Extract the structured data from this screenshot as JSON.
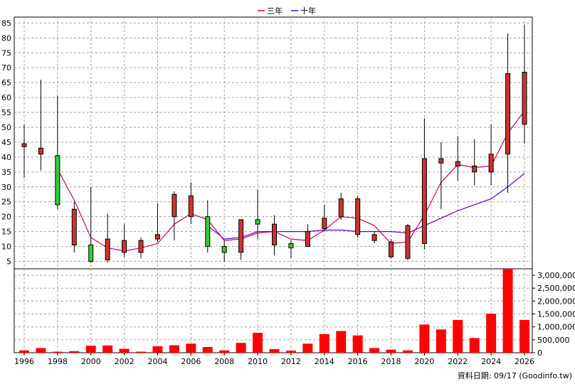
{
  "legend": [
    {
      "name": "三年",
      "color": "#cc0066"
    },
    {
      "name": "十年",
      "color": "#6600cc"
    }
  ],
  "footer": "資料日期: 09/17 (Goodinfo.tw)",
  "chart_data": [
    {
      "type": "candlestick",
      "years": [
        1996,
        1997,
        1998,
        1999,
        2000,
        2001,
        2002,
        2003,
        2004,
        2005,
        2006,
        2007,
        2008,
        2009,
        2010,
        2011,
        2012,
        2013,
        2014,
        2015,
        2016,
        2017,
        2018,
        2019,
        2020,
        2021,
        2022,
        2023,
        2024,
        2025,
        2026
      ],
      "open": [
        43.5,
        41.0,
        40.5,
        10.5,
        10.5,
        5.5,
        8.0,
        8.0,
        12.5,
        20.0,
        20.0,
        20.0,
        10.0,
        8.0,
        19.0,
        10.5,
        11.0,
        10.0,
        16.0,
        20.0,
        14.0,
        12.0,
        6.5,
        6.0,
        11.0,
        38.0,
        37.0,
        35.0,
        35.0,
        41.0,
        51.0
      ],
      "close": [
        44.5,
        43.0,
        24.0,
        22.5,
        5.0,
        12.5,
        12.0,
        12.0,
        14.0,
        27.5,
        27.0,
        10.0,
        8.0,
        19.0,
        17.5,
        17.5,
        9.5,
        15.0,
        19.5,
        26.0,
        26.0,
        14.0,
        11.5,
        17.0,
        39.5,
        39.5,
        38.5,
        37.0,
        41.0,
        68.0,
        68.5
      ],
      "high": [
        51.0,
        66.0,
        60.5,
        25.0,
        30.0,
        21.0,
        17.5,
        13.0,
        24.5,
        28.5,
        31.5,
        25.5,
        12.0,
        19.0,
        29.0,
        20.5,
        12.0,
        17.5,
        24.0,
        28.0,
        27.0,
        15.0,
        12.5,
        17.5,
        53.0,
        45.0,
        47.0,
        46.0,
        51.0,
        81.5,
        84.5
      ],
      "low": [
        33.0,
        35.5,
        22.5,
        8.0,
        4.5,
        4.5,
        6.5,
        6.0,
        11.5,
        12.0,
        17.5,
        8.0,
        5.0,
        5.5,
        12.5,
        7.0,
        6.0,
        10.0,
        15.0,
        19.0,
        13.0,
        11.0,
        6.0,
        5.5,
        9.0,
        22.5,
        32.0,
        30.5,
        30.5,
        28.0,
        44.5
      ],
      "ma_3y": [
        null,
        null,
        36.0,
        25.5,
        13.0,
        9.5,
        8.5,
        9.5,
        11.0,
        17.5,
        21.0,
        19.0,
        12.0,
        12.5,
        14.5,
        15.0,
        12.5,
        12.0,
        15.5,
        20.0,
        19.5,
        17.0,
        11.0,
        11.5,
        20.5,
        31.5,
        37.5,
        36.5,
        37.0,
        48.0,
        55.5
      ],
      "ma_10y": [
        null,
        null,
        null,
        null,
        null,
        null,
        null,
        null,
        null,
        null,
        null,
        17.0,
        12.5,
        13.0,
        15.0,
        15.0,
        15.0,
        15.0,
        15.5,
        15.5,
        15.0,
        15.0,
        15.0,
        14.5,
        17.0,
        19.5,
        22.0,
        24.0,
        26.0,
        30.0,
        34.5
      ],
      "y_ticks": [
        5,
        10,
        15,
        20,
        25,
        30,
        35,
        40,
        45,
        50,
        55,
        60,
        65,
        70,
        75,
        80,
        85
      ],
      "ylim": [
        2.5,
        87
      ]
    },
    {
      "type": "bar",
      "name": "volume",
      "years": [
        1996,
        1997,
        1998,
        1999,
        2000,
        2001,
        2002,
        2003,
        2004,
        2005,
        2006,
        2007,
        2008,
        2009,
        2010,
        2011,
        2012,
        2013,
        2014,
        2015,
        2016,
        2017,
        2018,
        2019,
        2020,
        2021,
        2022,
        2023,
        2024,
        2025,
        2026
      ],
      "values": [
        90000,
        180000,
        40000,
        60000,
        270000,
        280000,
        150000,
        40000,
        250000,
        290000,
        350000,
        220000,
        90000,
        380000,
        770000,
        140000,
        80000,
        350000,
        720000,
        840000,
        670000,
        180000,
        120000,
        90000,
        1090000,
        900000,
        1270000,
        570000,
        1510000,
        3250000,
        1270000
      ],
      "y_ticks": [
        0,
        500000,
        1000000,
        1500000,
        2000000,
        2500000,
        3000000
      ],
      "y_tick_labels": [
        "0",
        "500,000",
        "1,000,000",
        "1,500,000",
        "2,000,000",
        "2,500,000",
        "3,000,000"
      ],
      "ylim": [
        0,
        3250000
      ]
    }
  ],
  "x_tick_labels": [
    "1996",
    "1998",
    "2000",
    "2002",
    "2004",
    "2006",
    "2008",
    "2010",
    "2012",
    "2014",
    "2016",
    "2018",
    "2020",
    "2022",
    "2024",
    "2026"
  ]
}
